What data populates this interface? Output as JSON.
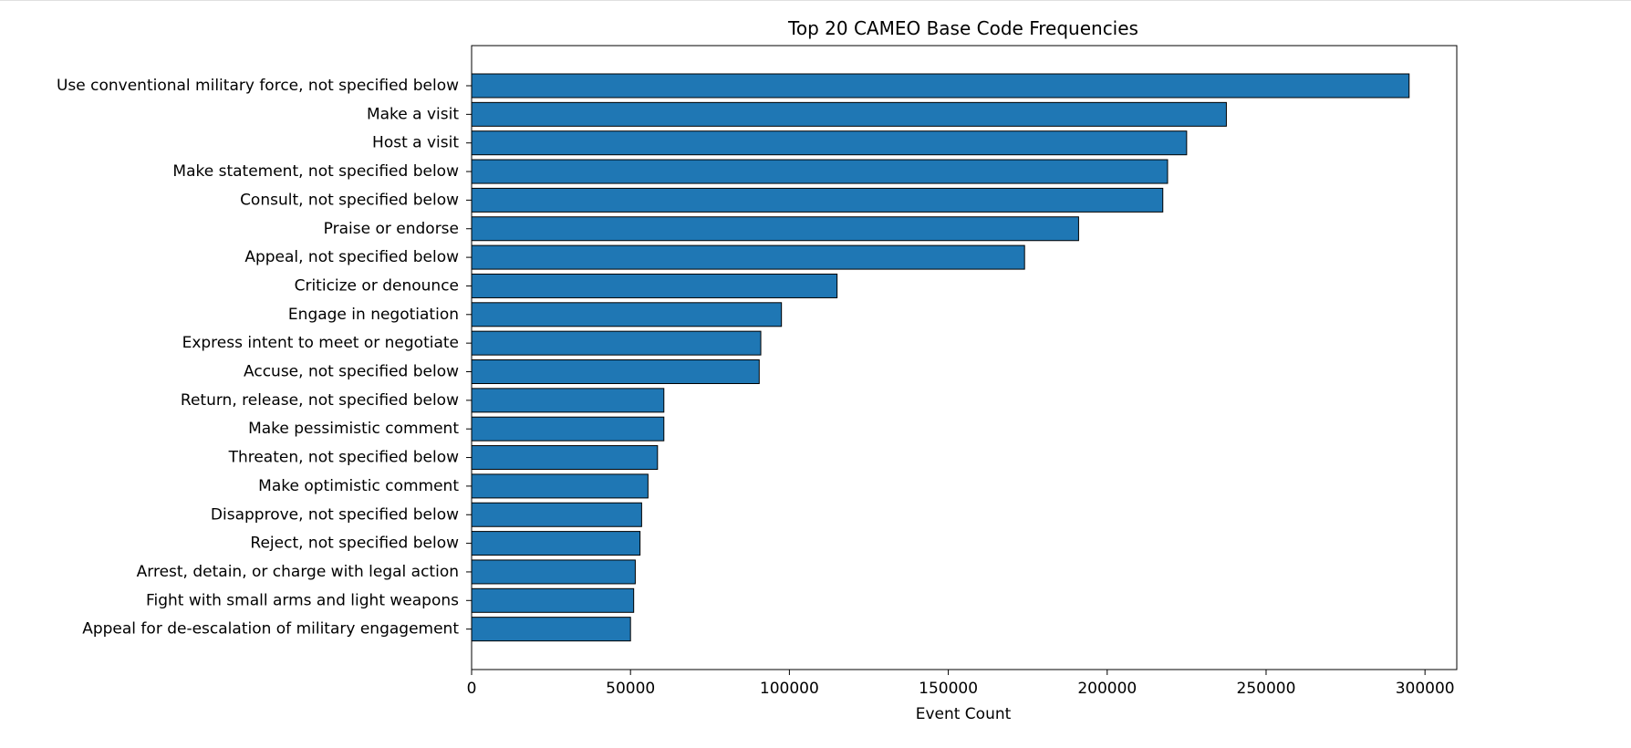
{
  "chart_data": {
    "type": "bar",
    "orientation": "horizontal",
    "title": "Top 20 CAMEO Base Code Frequencies",
    "xlabel": "Event Count",
    "ylabel": "",
    "xlim": [
      0,
      310000
    ],
    "xticks": [
      0,
      50000,
      100000,
      150000,
      200000,
      250000,
      300000
    ],
    "grid": false,
    "bar_color": "#1f77b4",
    "bar_edge_color": "#000000",
    "categories": [
      "Use conventional military force, not specified below",
      "Make a visit",
      "Host a visit",
      "Make statement, not specified below",
      "Consult, not specified below",
      "Praise or endorse",
      "Appeal, not specified below",
      "Criticize or denounce",
      "Engage in negotiation",
      "Express intent to meet or negotiate",
      "Accuse, not specified below",
      "Return, release, not specified below",
      "Make pessimistic comment",
      "Threaten, not specified below",
      "Make optimistic comment",
      "Disapprove, not specified below",
      "Reject, not specified below",
      "Arrest, detain, or charge with legal action",
      "Fight with small arms and light weapons",
      "Appeal for de-escalation of military engagement"
    ],
    "values": [
      295000,
      237500,
      225000,
      219000,
      217500,
      191000,
      174000,
      115000,
      97500,
      91000,
      90500,
      60500,
      60500,
      58500,
      55500,
      53500,
      53000,
      51500,
      51000,
      50000
    ]
  }
}
